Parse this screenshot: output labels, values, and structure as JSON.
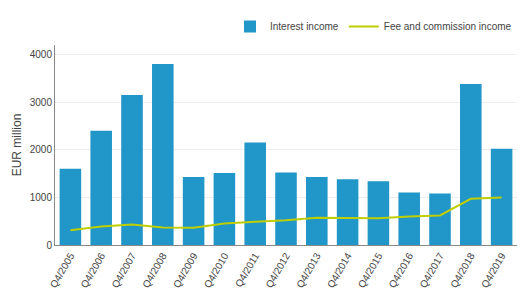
{
  "chart_data": {
    "type": "bar",
    "categories": [
      "Q4/2005",
      "Q4/2006",
      "Q4/2007",
      "Q4/2008",
      "Q4/2009",
      "Q4/2010",
      "Q4/2011",
      "Q4/2012",
      "Q4/2013",
      "Q4/2014",
      "Q4/2015",
      "Q4/2016",
      "Q4/2017",
      "Q4/2018",
      "Q4/2019"
    ],
    "series": [
      {
        "name": "Interest income",
        "type": "bar",
        "color": "#2196C8",
        "values": [
          1600,
          2400,
          3150,
          3800,
          1430,
          1510,
          2150,
          1520,
          1430,
          1380,
          1340,
          1100,
          1080,
          3380,
          2020
        ]
      },
      {
        "name": "Fee and commission income",
        "type": "line",
        "color": "#BFCE00",
        "values": [
          310,
          390,
          430,
          370,
          360,
          450,
          490,
          520,
          570,
          560,
          560,
          600,
          620,
          970,
          1000
        ]
      }
    ],
    "ylabel": "EUR million",
    "ylim": [
      0,
      4200
    ],
    "yticks": [
      0,
      1000,
      2000,
      3000,
      4000
    ],
    "grid": true,
    "legend": "upper right"
  }
}
